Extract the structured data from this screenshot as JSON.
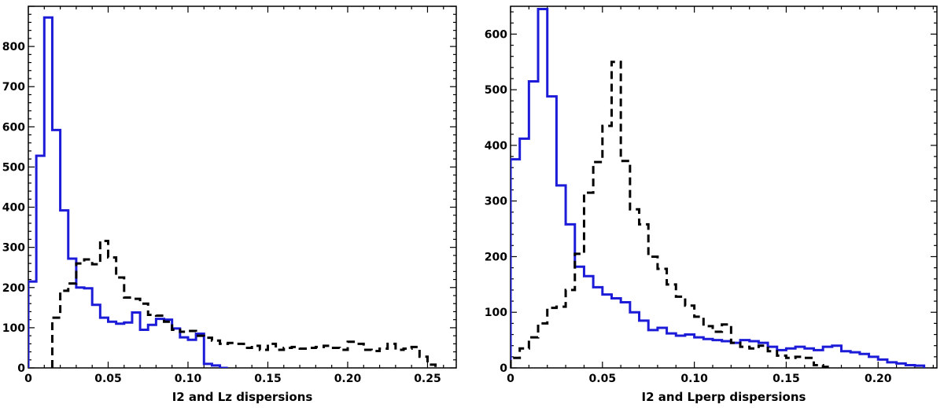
{
  "chart_data": [
    {
      "type": "step",
      "xlabel": "I2 and Lz dispersions",
      "ylabel": "",
      "xlim": [
        0,
        0.268
      ],
      "ylim": [
        0,
        900
      ],
      "bin_width": 0.005,
      "xticks": [
        0,
        0.05,
        0.1,
        0.15,
        0.2,
        0.25
      ],
      "xtick_labels": [
        "0",
        "0.05",
        "0.10",
        "0.15",
        "0.20",
        "0.25"
      ],
      "yticks": [
        0,
        100,
        200,
        300,
        400,
        500,
        600,
        700,
        800
      ],
      "ytick_labels": [
        "0",
        "100",
        "200",
        "300",
        "400",
        "500",
        "600",
        "700",
        "800"
      ],
      "series": [
        {
          "color": "#1c1cd8",
          "dash": "solid",
          "x_start": 0,
          "values": [
            215,
            528,
            872,
            592,
            392,
            272,
            200,
            198,
            157,
            125,
            115,
            110,
            113,
            138,
            95,
            107,
            122,
            120,
            98,
            76,
            70,
            85,
            10,
            6,
            0
          ]
        },
        {
          "color": "#000000",
          "dash": "dashed",
          "x_start": 0.015,
          "values": [
            125,
            192,
            210,
            260,
            270,
            258,
            316,
            275,
            225,
            175,
            172,
            160,
            132,
            130,
            115,
            95,
            90,
            92,
            80,
            75,
            68,
            60,
            62,
            60,
            50,
            55,
            45,
            60,
            45,
            50,
            52,
            48,
            50,
            52,
            55,
            50,
            45,
            65,
            60,
            45,
            42,
            48,
            60,
            45,
            48,
            52,
            28,
            8
          ]
        }
      ]
    },
    {
      "type": "step",
      "xlabel": "I2 and Lperp dispersions",
      "ylabel": "",
      "xlim": [
        0,
        0.232
      ],
      "ylim": [
        0,
        650
      ],
      "bin_width": 0.005,
      "xticks": [
        0,
        0.05,
        0.1,
        0.15,
        0.2
      ],
      "xtick_labels": [
        "0",
        "0.05",
        "0.10",
        "0.15",
        "0.20"
      ],
      "yticks": [
        0,
        100,
        200,
        300,
        400,
        500,
        600
      ],
      "ytick_labels": [
        "0",
        "100",
        "200",
        "300",
        "400",
        "500",
        "600"
      ],
      "series": [
        {
          "color": "#1c1cd8",
          "dash": "solid",
          "x_start": 0,
          "values": [
            375,
            412,
            515,
            645,
            488,
            328,
            258,
            182,
            165,
            145,
            132,
            125,
            118,
            100,
            85,
            68,
            72,
            62,
            58,
            60,
            55,
            52,
            50,
            48,
            45,
            50,
            48,
            45,
            38,
            32,
            35,
            38,
            35,
            32,
            38,
            40,
            30,
            28,
            25,
            20,
            15,
            10,
            8,
            5,
            4
          ]
        },
        {
          "color": "#000000",
          "dash": "dashed",
          "x_start": 0,
          "values": [
            18,
            35,
            55,
            80,
            108,
            110,
            140,
            205,
            315,
            370,
            435,
            550,
            372,
            285,
            258,
            200,
            178,
            150,
            128,
            112,
            92,
            75,
            65,
            78,
            45,
            38,
            35,
            40,
            30,
            22,
            18,
            20,
            18,
            5,
            2
          ]
        }
      ]
    }
  ]
}
